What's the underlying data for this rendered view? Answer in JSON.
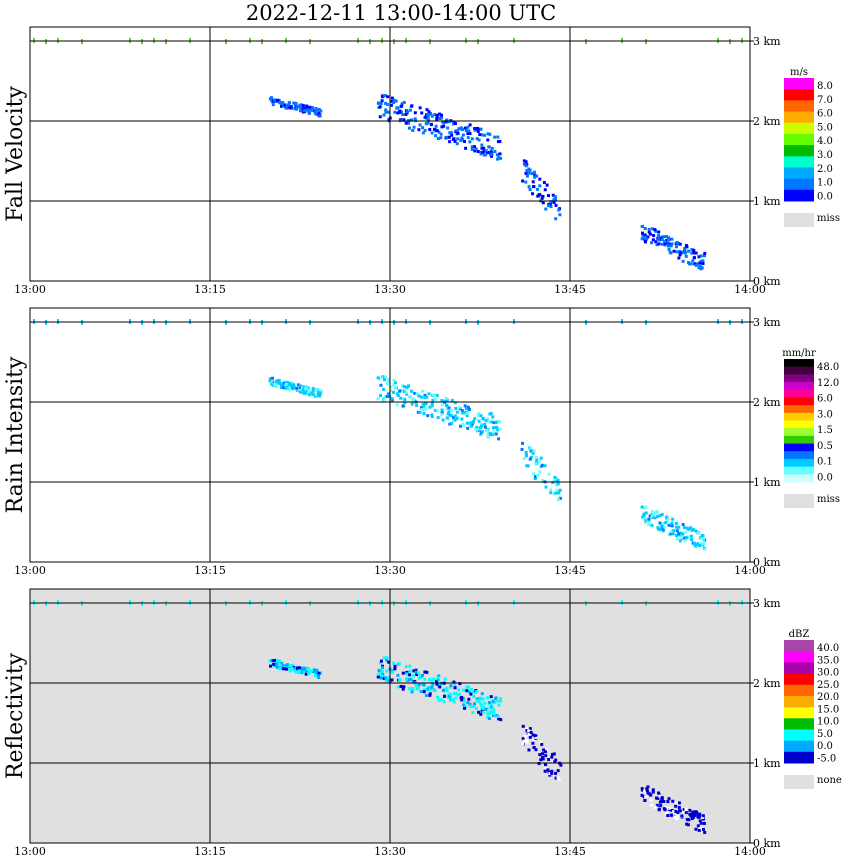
{
  "title": "2022-12-11   13:00-14:00 UTC",
  "time_ticks": [
    "13:00",
    "13:15",
    "13:30",
    "13:45",
    "14:00"
  ],
  "height_ticks": [
    "0 km",
    "1 km",
    "2 km",
    "3 km"
  ],
  "colors": {
    "grid": "#000000",
    "missing_bg": "#e0e0e0",
    "surface_clutter": "#66cc33"
  },
  "panels": [
    {
      "id": "fall-velocity",
      "ylabel": "Fall Velocity",
      "unit": "m/s",
      "background": "#ffffff",
      "colorbar": {
        "labels": [
          "8.0",
          "7.0",
          "6.0",
          "5.0",
          "4.0",
          "3.0",
          "2.0",
          "1.0",
          "0.0"
        ],
        "colors": [
          "#ff00ff",
          "#ff0000",
          "#ff6600",
          "#ffaa00",
          "#ccff00",
          "#66ff00",
          "#00bb00",
          "#00ffcc",
          "#00aaff",
          "#0077ff",
          "#0000ff"
        ],
        "miss_label": "miss"
      }
    },
    {
      "id": "rain-intensity",
      "ylabel": "Rain Intensity",
      "unit": "mm/hr",
      "background": "#ffffff",
      "colorbar": {
        "labels": [
          "48.0",
          "12.0",
          "6.0",
          "3.0",
          "1.5",
          "0.5",
          "0.1",
          "0.0"
        ],
        "colors": [
          "#000000",
          "#400040",
          "#800080",
          "#cc00cc",
          "#ff0099",
          "#ff0000",
          "#ff6600",
          "#ffcc00",
          "#ffff00",
          "#99ff33",
          "#33cc00",
          "#0000ff",
          "#0077ff",
          "#00ccff",
          "#66ffff",
          "#ccffff"
        ],
        "miss_label": "miss"
      }
    },
    {
      "id": "reflectivity",
      "ylabel": "Reflectivity",
      "unit": "dBZ",
      "background": "#e0e0e0",
      "colorbar": {
        "labels": [
          "40.0",
          "35.0",
          "30.0",
          "25.0",
          "20.0",
          "15.0",
          "10.0",
          "5.0",
          "0.0",
          "-5.0"
        ],
        "colors": [
          "#aa44aa",
          "#ff00ff",
          "#aa00aa",
          "#ff0000",
          "#ff6600",
          "#ffaa00",
          "#ffff00",
          "#00bb00",
          "#00ffff",
          "#00aaff",
          "#0000cc"
        ],
        "miss_label": "none"
      }
    }
  ],
  "chart_data": [
    {
      "type": "heatmap",
      "title": "2022-12-11   13:00-14:00 UTC",
      "ylabel": "Fall Velocity",
      "colorbar_unit": "m/s",
      "x_range": [
        "13:00",
        "14:00"
      ],
      "ylim_km": [
        0,
        3.2
      ],
      "echo_features": [
        {
          "t_start": "13:20",
          "t_end": "13:24",
          "h_low_km": 2.1,
          "h_high_km": 2.3,
          "value_range": [
            1.0,
            2.0
          ]
        },
        {
          "t_start": "13:29",
          "t_end": "13:39",
          "h_low_km": 1.6,
          "h_high_km": 2.3,
          "value_range": [
            0.0,
            2.0
          ]
        },
        {
          "t_start": "13:41",
          "t_end": "13:44",
          "h_low_km": 0.8,
          "h_high_km": 1.5,
          "value_range": [
            0.0,
            2.0
          ]
        },
        {
          "t_start": "13:51",
          "t_end": "13:56",
          "h_low_km": 0.2,
          "h_high_km": 0.7,
          "value_range": [
            0.0,
            2.0
          ]
        }
      ]
    },
    {
      "type": "heatmap",
      "ylabel": "Rain Intensity",
      "colorbar_unit": "mm/hr",
      "x_range": [
        "13:00",
        "14:00"
      ],
      "ylim_km": [
        0,
        3.2
      ],
      "echo_features": [
        {
          "t_start": "13:20",
          "t_end": "13:24",
          "h_low_km": 2.1,
          "h_high_km": 2.3,
          "value_range": [
            0.0,
            0.5
          ]
        },
        {
          "t_start": "13:29",
          "t_end": "13:39",
          "h_low_km": 1.6,
          "h_high_km": 2.3,
          "value_range": [
            0.0,
            0.5
          ]
        },
        {
          "t_start": "13:41",
          "t_end": "13:44",
          "h_low_km": 0.8,
          "h_high_km": 1.5,
          "value_range": [
            0.0,
            0.1
          ]
        },
        {
          "t_start": "13:51",
          "t_end": "13:56",
          "h_low_km": 0.2,
          "h_high_km": 0.7,
          "value_range": [
            0.0,
            0.1
          ]
        }
      ]
    },
    {
      "type": "heatmap",
      "ylabel": "Reflectivity",
      "colorbar_unit": "dBZ",
      "x_range": [
        "13:00",
        "14:00"
      ],
      "ylim_km": [
        0,
        3.2
      ],
      "echo_features": [
        {
          "t_start": "13:20",
          "t_end": "13:24",
          "h_low_km": 2.1,
          "h_high_km": 2.3,
          "value_range": [
            0.0,
            10.0
          ]
        },
        {
          "t_start": "13:29",
          "t_end": "13:39",
          "h_low_km": 1.6,
          "h_high_km": 2.3,
          "value_range": [
            -5.0,
            10.0
          ]
        },
        {
          "t_start": "13:41",
          "t_end": "13:44",
          "h_low_km": 0.8,
          "h_high_km": 1.5,
          "value_range": [
            -5.0,
            0.0
          ]
        },
        {
          "t_start": "13:51",
          "t_end": "13:56",
          "h_low_km": 0.2,
          "h_high_km": 0.7,
          "value_range": [
            -5.0,
            0.0
          ]
        }
      ]
    }
  ]
}
